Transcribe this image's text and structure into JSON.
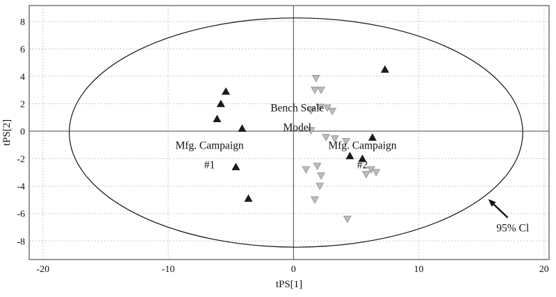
{
  "figure": {
    "xlabel": "tPS[1]",
    "ylabel": "tPS[2]"
  },
  "chart_data": {
    "type": "scatter",
    "title": "",
    "xlabel": "tPS[1]",
    "ylabel": "tPS[2]",
    "xlim": [
      -21.1,
      20.4
    ],
    "ylim": [
      -9.35,
      9.15
    ],
    "xticks": [
      -20,
      -10,
      0,
      10,
      20
    ],
    "yticks": [
      -8,
      -6,
      -4,
      -2,
      0,
      2,
      4,
      6,
      8
    ],
    "grid": "dotted",
    "grid_color": "#b5b5b5",
    "zero_lines": true,
    "border_color": "#333333",
    "legend": "none",
    "confidence_ellipse": {
      "cx": 0.2,
      "cy": -0.1,
      "rx": 18.1,
      "ry": 8.35,
      "label": "95% Cl"
    },
    "series": [
      {
        "name": "Mfg. Campaign (black triangles up)",
        "marker": "triangle-up",
        "color": "#1c1c1c",
        "edge": "#111111",
        "points": [
          [
            -5.4,
            2.9
          ],
          [
            -5.8,
            2.0
          ],
          [
            -6.1,
            0.9
          ],
          [
            -4.1,
            0.2
          ],
          [
            -4.6,
            -2.6
          ],
          [
            -3.6,
            -4.9
          ],
          [
            7.3,
            4.5
          ],
          [
            6.3,
            -0.45
          ],
          [
            4.5,
            -1.8
          ],
          [
            5.5,
            -2.0
          ]
        ]
      },
      {
        "name": "Bench Scale Model (gray triangles down)",
        "marker": "triangle-down",
        "color": "#bcbcbc",
        "edge": "#8f8f8f",
        "points": [
          [
            1.8,
            3.85
          ],
          [
            1.7,
            3.0
          ],
          [
            2.2,
            3.0
          ],
          [
            1.4,
            1.5
          ],
          [
            2.1,
            1.75
          ],
          [
            2.7,
            1.7
          ],
          [
            3.1,
            1.45
          ],
          [
            1.4,
            0.05
          ],
          [
            2.6,
            -0.45
          ],
          [
            3.3,
            -0.55
          ],
          [
            4.2,
            -0.75
          ],
          [
            1.9,
            -2.55
          ],
          [
            1.0,
            -2.8
          ],
          [
            2.2,
            -3.25
          ],
          [
            2.1,
            -4.0
          ],
          [
            6.2,
            -2.8
          ],
          [
            6.6,
            -3.0
          ],
          [
            5.8,
            -3.15
          ],
          [
            1.7,
            -5.0
          ],
          [
            4.3,
            -6.4
          ]
        ]
      }
    ],
    "annotations": [
      {
        "lines": [
          "Bench Scale",
          "Model"
        ],
        "x": 0.3,
        "y": 1.45
      },
      {
        "lines": [
          "Mfg. Campaign",
          "#1"
        ],
        "x": -6.7,
        "y": -1.3
      },
      {
        "lines": [
          "Mfg. Campaign",
          "#2"
        ],
        "x": 5.5,
        "y": -1.3
      },
      {
        "lines": [
          "95% Cl"
        ],
        "x": 17.5,
        "y": -7.3
      }
    ],
    "arrow": {
      "x1": 17.1,
      "y1": -6.3,
      "x2": 15.55,
      "y2": -4.95
    }
  }
}
